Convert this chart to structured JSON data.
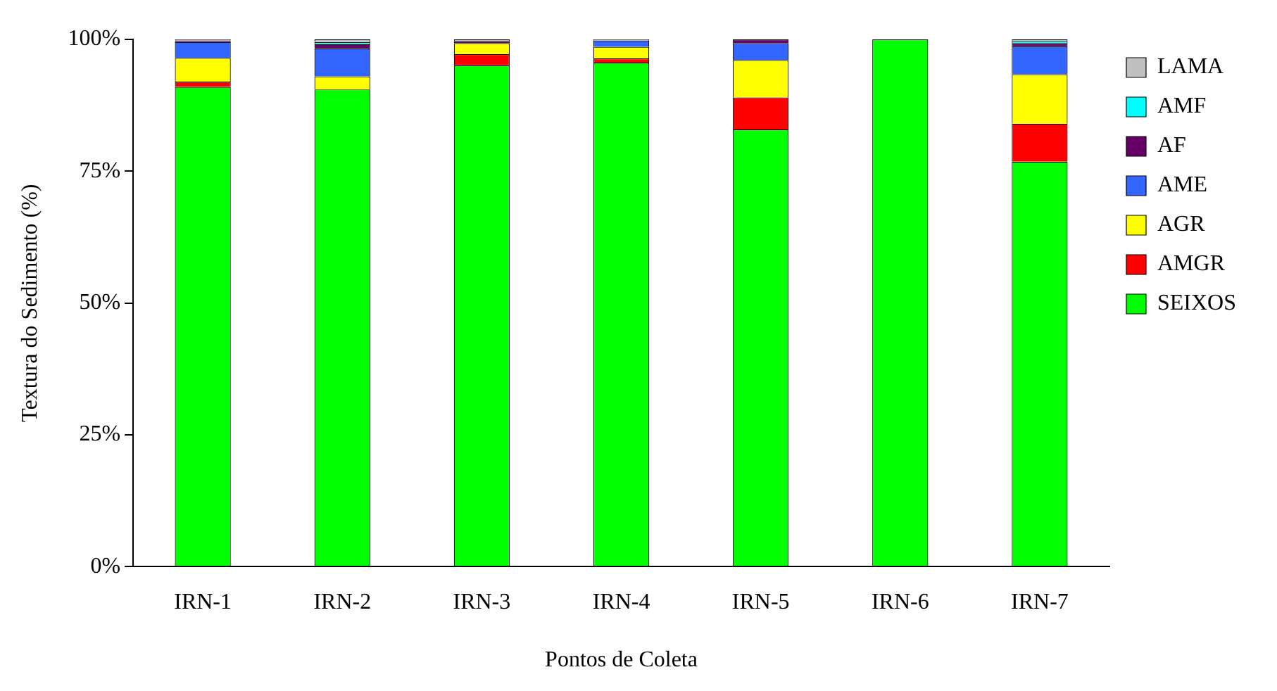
{
  "chart_data": {
    "type": "bar",
    "stacked": true,
    "xlabel": "Pontos de Coleta",
    "ylabel": "Textura do Sedimento (%)",
    "categories": [
      "IRN-1",
      "IRN-2",
      "IRN-3",
      "IRN-4",
      "IRN-5",
      "IRN-6",
      "IRN-7"
    ],
    "series": [
      {
        "name": "SEIXOS",
        "color": "#00ff00",
        "values": [
          91,
          90.5,
          95.1,
          95.6,
          82.9,
          100,
          76.8
        ]
      },
      {
        "name": "AMGR",
        "color": "#ff0000",
        "values": [
          1,
          0,
          2.1,
          0.8,
          6.1,
          0,
          7.2
        ]
      },
      {
        "name": "AGR",
        "color": "#ffff00",
        "values": [
          4.5,
          2.5,
          2.1,
          2.2,
          7.1,
          0,
          9.4
        ]
      },
      {
        "name": "AME",
        "color": "#3366ff",
        "values": [
          3,
          5.3,
          0,
          1.2,
          3.2,
          0,
          5.3
        ]
      },
      {
        "name": "AF",
        "color": "#660066",
        "values": [
          0.3,
          0.8,
          0.4,
          0,
          0.7,
          0,
          0.6
        ]
      },
      {
        "name": "AMF",
        "color": "#00ffff",
        "values": [
          0,
          0.4,
          0,
          0,
          0,
          0,
          0.4
        ]
      },
      {
        "name": "LAMA",
        "color": "#c0c0c0",
        "values": [
          0.2,
          0.5,
          0.3,
          0.2,
          0,
          0,
          0.3
        ]
      }
    ],
    "ylim": [
      0,
      100
    ],
    "yticks": [
      {
        "value": 0,
        "label": "0%"
      },
      {
        "value": 25,
        "label": "25%"
      },
      {
        "value": 50,
        "label": "50%"
      },
      {
        "value": 75,
        "label": "75%"
      },
      {
        "value": 100,
        "label": "100%"
      }
    ],
    "grid": false,
    "legend": "right"
  }
}
